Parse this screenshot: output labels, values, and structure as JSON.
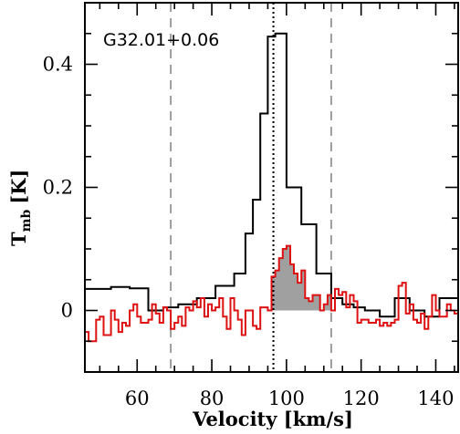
{
  "chart_data": {
    "type": "line",
    "annotation": "G32.01+0.06",
    "xlabel": "Velocity [km/s]",
    "ylabel_main": "T",
    "ylabel_sub": "mb",
    "ylabel_unit": "[K]",
    "xlim": [
      46,
      146
    ],
    "ylim": [
      -0.1,
      0.5
    ],
    "xticks": [
      60,
      80,
      100,
      120,
      140
    ],
    "yticks": [
      0,
      0.2,
      0.4
    ],
    "ytick_labels": [
      "0",
      "0.2",
      "0.4"
    ],
    "x_minor_step": 5,
    "y_minor_step": 0.05,
    "vlines": [
      {
        "x": 69,
        "style": "dashed",
        "color": "#888888"
      },
      {
        "x": 96.5,
        "style": "dotted",
        "color": "#000000"
      },
      {
        "x": 112,
        "style": "dashed",
        "color": "#888888"
      }
    ],
    "fill_color": "#a0a0a0",
    "series": [
      {
        "color": "#000000",
        "style": "step",
        "x": [
          46,
          49,
          53,
          58,
          63,
          67,
          71,
          76,
          81,
          86,
          89,
          91,
          93,
          95,
          97,
          100,
          104,
          108,
          112,
          115,
          118,
          121,
          125,
          129,
          133,
          137,
          141,
          145
        ],
        "y": [
          0.035,
          0.035,
          0.038,
          0.036,
          0.0,
          0.005,
          0.01,
          0.02,
          0.04,
          0.06,
          0.125,
          0.18,
          0.32,
          0.445,
          0.45,
          0.2,
          0.14,
          0.06,
          0.02,
          0.01,
          0.005,
          0.0,
          -0.01,
          0.02,
          0.0,
          -0.01,
          0.02,
          0.02
        ]
      },
      {
        "color": "#dd1111",
        "style": "step",
        "fill_between": [
          96,
          112
        ],
        "x": [
          46,
          47,
          48,
          49,
          50,
          51,
          52,
          53,
          54,
          55,
          56,
          57,
          58,
          59,
          60,
          61,
          62,
          63,
          64,
          65,
          66,
          67,
          68,
          69,
          70,
          71,
          72,
          73,
          74,
          75,
          76,
          77,
          78,
          79,
          80,
          81,
          82,
          83,
          84,
          85,
          86,
          87,
          88,
          89,
          90,
          91,
          92,
          93,
          94,
          95,
          96,
          97,
          98,
          99,
          100,
          101,
          102,
          103,
          104,
          105,
          106,
          107,
          108,
          109,
          110,
          111,
          112,
          113,
          114,
          115,
          116,
          117,
          118,
          119,
          120,
          121,
          122,
          123,
          124,
          125,
          126,
          127,
          128,
          129,
          130,
          131,
          132,
          133,
          134,
          135,
          136,
          137,
          138,
          139,
          140,
          141,
          142,
          143,
          144,
          145
        ],
        "y": [
          -0.035,
          -0.05,
          -0.05,
          -0.015,
          -0.01,
          -0.04,
          -0.04,
          0.0,
          -0.015,
          -0.035,
          -0.02,
          -0.025,
          0.0,
          0.01,
          -0.01,
          -0.02,
          -0.02,
          -0.015,
          0.01,
          -0.005,
          -0.02,
          0.005,
          0.0,
          -0.03,
          -0.02,
          -0.01,
          -0.025,
          0.005,
          0.0,
          0.015,
          0.005,
          0.02,
          -0.01,
          0.01,
          0.0,
          0.005,
          0.02,
          -0.01,
          -0.03,
          0.02,
          0.0,
          -0.015,
          -0.04,
          0.0,
          0.0,
          -0.025,
          -0.03,
          0.005,
          0.005,
          0.0,
          0.055,
          0.065,
          0.085,
          0.1,
          0.105,
          0.075,
          0.06,
          0.045,
          0.065,
          0.02,
          0.015,
          0.025,
          0.025,
          0.0,
          0.01,
          0.025,
          0.0,
          0.035,
          0.025,
          0.03,
          0.005,
          0.025,
          0.015,
          -0.02,
          -0.015,
          -0.015,
          -0.02,
          -0.02,
          -0.015,
          -0.025,
          -0.02,
          -0.025,
          -0.02,
          -0.015,
          0.04,
          0.045,
          -0.005,
          0.01,
          -0.015,
          -0.02,
          -0.005,
          -0.03,
          -0.01,
          0.025,
          0.0,
          -0.01,
          -0.01,
          0.01,
          0.0,
          -0.005
        ]
      }
    ]
  }
}
